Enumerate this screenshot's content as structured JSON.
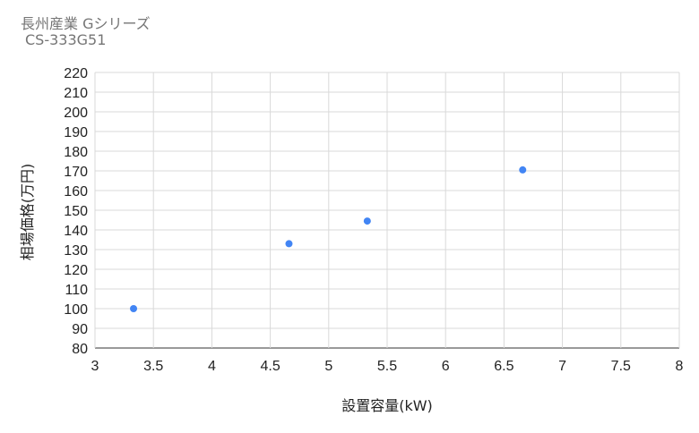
{
  "chart_data": {
    "type": "scatter",
    "title": "長州産業 Gシリーズ",
    "subtitle": "CS-333G51",
    "xlabel": "設置容量(kW)",
    "ylabel": "相場価格(万円)",
    "xlim": [
      3,
      8
    ],
    "ylim": [
      80,
      220
    ],
    "xticks": [
      "3",
      "3.5",
      "4",
      "4.5",
      "5",
      "5.5",
      "6",
      "6.5",
      "7",
      "7.5",
      "8"
    ],
    "yticks": [
      "80",
      "90",
      "100",
      "110",
      "120",
      "130",
      "140",
      "150",
      "160",
      "170",
      "180",
      "190",
      "200",
      "210",
      "220"
    ],
    "grid": true,
    "legend": "none",
    "point_color": "#4285f4",
    "points": [
      {
        "x": 3.33,
        "y": 100
      },
      {
        "x": 4.66,
        "y": 133
      },
      {
        "x": 5.33,
        "y": 144.5
      },
      {
        "x": 6.66,
        "y": 170.5
      }
    ]
  }
}
